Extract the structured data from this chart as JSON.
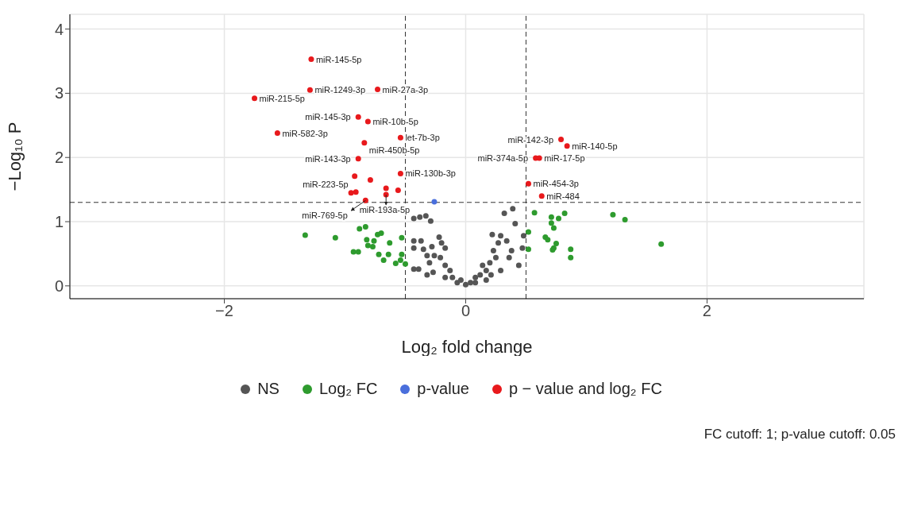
{
  "chart_data": {
    "type": "scatter",
    "xlabel": "Log₂ fold change",
    "ylabel": "−Log₁₀ P",
    "xlim": [
      -3.28,
      3.3
    ],
    "ylim": [
      -0.2,
      4.23
    ],
    "xticks": [
      -2,
      0,
      2
    ],
    "yticks": [
      0,
      1,
      2,
      3,
      4
    ],
    "grid": true,
    "legend": "bottom",
    "marker": "circle",
    "ref_lines": [
      {
        "axis": "x",
        "value": -0.5,
        "line_style": "dashed"
      },
      {
        "axis": "x",
        "value": 0.5,
        "line_style": "dashed"
      },
      {
        "axis": "y",
        "value": 1.3,
        "line_style": "dashed"
      }
    ],
    "series": [
      {
        "name": "NS",
        "color": "#555555",
        "x": [
          -0.43,
          -0.38,
          -0.33,
          -0.29,
          -0.43,
          -0.37,
          -0.43,
          -0.35,
          -0.28,
          -0.22,
          -0.2,
          -0.17,
          -0.43,
          -0.39,
          -0.32,
          -0.3,
          -0.26,
          -0.21,
          -0.32,
          -0.27,
          -0.17,
          -0.13,
          -0.17,
          -0.11,
          -0.07,
          0,
          0.04,
          0.08,
          0.12,
          0.17,
          0.14,
          0.2,
          0.25,
          0.23,
          0.27,
          0.22,
          0.29,
          0.34,
          0.32,
          0.39,
          0.41,
          0.38,
          0.44,
          0.47,
          0.48,
          0.36,
          -0.04,
          0.08,
          0.17,
          0.21,
          0.29
        ],
        "values": [
          1.05,
          1.07,
          1.09,
          1.01,
          0.7,
          0.7,
          0.59,
          0.57,
          0.61,
          0.76,
          0.67,
          0.59,
          0.26,
          0.26,
          0.47,
          0.36,
          0.47,
          0.44,
          0.17,
          0.21,
          0.32,
          0.24,
          0.13,
          0.13,
          0.05,
          0.02,
          0.05,
          0.13,
          0.17,
          0.24,
          0.32,
          0.36,
          0.44,
          0.55,
          0.67,
          0.8,
          0.78,
          0.7,
          1.13,
          1.2,
          0.97,
          0.55,
          0.32,
          0.59,
          0.78,
          0.44,
          0.09,
          0.05,
          0.09,
          0.17,
          0.24
        ]
      },
      {
        "name": "Log₂ FC",
        "color": "#2e9b2e",
        "x": [
          -1.33,
          -1.08,
          -0.88,
          -0.83,
          -0.93,
          -0.89,
          -0.82,
          -0.76,
          -0.73,
          -0.7,
          -0.81,
          -0.77,
          -0.63,
          -0.72,
          -0.68,
          -0.64,
          -0.58,
          -0.54,
          -0.53,
          -0.53,
          -0.5,
          0.57,
          0.71,
          0.77,
          0.82,
          0.71,
          0.73,
          0.52,
          0.66,
          0.68,
          0.75,
          0.73,
          0.72,
          0.87,
          0.87,
          0.52,
          1.22,
          1.32,
          1.62
        ],
        "values": [
          0.79,
          0.75,
          0.89,
          0.92,
          0.53,
          0.53,
          0.72,
          0.7,
          0.8,
          0.82,
          0.63,
          0.61,
          0.67,
          0.49,
          0.4,
          0.49,
          0.35,
          0.4,
          0.49,
          0.75,
          0.34,
          1.14,
          1.07,
          1.05,
          1.13,
          0.98,
          0.9,
          0.84,
          0.76,
          0.72,
          0.66,
          0.59,
          0.56,
          0.57,
          0.44,
          0.57,
          1.11,
          1.03,
          0.65
        ]
      },
      {
        "name": "p-value",
        "color": "#4a6fdc",
        "x": [
          -0.26
        ],
        "values": [
          1.31
        ]
      },
      {
        "name": "p − value and log₂ FC",
        "color": "#e8191c",
        "x": [
          -1.28,
          -1.29,
          -0.73,
          -1.75,
          -1.56,
          -0.89,
          -0.81,
          -0.54,
          -0.84,
          -0.89,
          -0.54,
          -0.92,
          -0.79,
          -0.66,
          -0.56,
          -0.66,
          -0.95,
          -0.91,
          -0.83,
          0.79,
          0.84,
          0.58,
          0.61,
          0.52,
          0.63
        ],
        "values": [
          3.53,
          3.05,
          3.06,
          2.92,
          2.38,
          2.63,
          2.56,
          2.31,
          2.23,
          1.98,
          1.75,
          1.71,
          1.65,
          1.52,
          1.49,
          1.42,
          1.45,
          1.46,
          1.33,
          2.28,
          2.18,
          1.99,
          1.99,
          1.59,
          1.4
        ]
      }
    ],
    "annotations": [
      {
        "text": "miR-145-5p",
        "x": -1.28,
        "y": 3.53
      },
      {
        "text": "miR-1249-3p",
        "x": -1.29,
        "y": 3.05
      },
      {
        "text": "miR-27a-3p",
        "x": -0.73,
        "y": 3.06
      },
      {
        "text": "miR-215-5p",
        "x": -1.75,
        "y": 2.92
      },
      {
        "text": "miR-582-3p",
        "x": -1.56,
        "y": 2.38
      },
      {
        "text": "miR-145-3p",
        "x": -0.89,
        "y": 2.63
      },
      {
        "text": "miR-10b-5p",
        "x": -0.81,
        "y": 2.56
      },
      {
        "text": "let-7b-3p",
        "x": -0.54,
        "y": 2.31
      },
      {
        "text": "miR-450b-5p",
        "x": -0.84,
        "y": 2.23
      },
      {
        "text": "miR-143-3p",
        "x": -0.89,
        "y": 1.98
      },
      {
        "text": "miR-130b-3p",
        "x": -0.54,
        "y": 1.75
      },
      {
        "text": "miR-193a-5p",
        "x": -0.66,
        "y": 1.42
      },
      {
        "text": "miR-223-5p",
        "x": -0.91,
        "y": 1.46
      },
      {
        "text": "miR-769-5p",
        "x": -0.83,
        "y": 1.33
      },
      {
        "text": "miR-142-3p",
        "x": 0.79,
        "y": 2.28
      },
      {
        "text": "miR-140-5p",
        "x": 0.84,
        "y": 2.18
      },
      {
        "text": "miR-374a-5p",
        "x": 0.58,
        "y": 1.99
      },
      {
        "text": "miR-17-5p",
        "x": 0.61,
        "y": 1.99
      },
      {
        "text": "miR-454-3p",
        "x": 0.52,
        "y": 1.59
      },
      {
        "text": "miR-484",
        "x": 0.63,
        "y": 1.4
      },
      "FC cutoff: 1; p-value cutoff: 0.05"
    ]
  }
}
